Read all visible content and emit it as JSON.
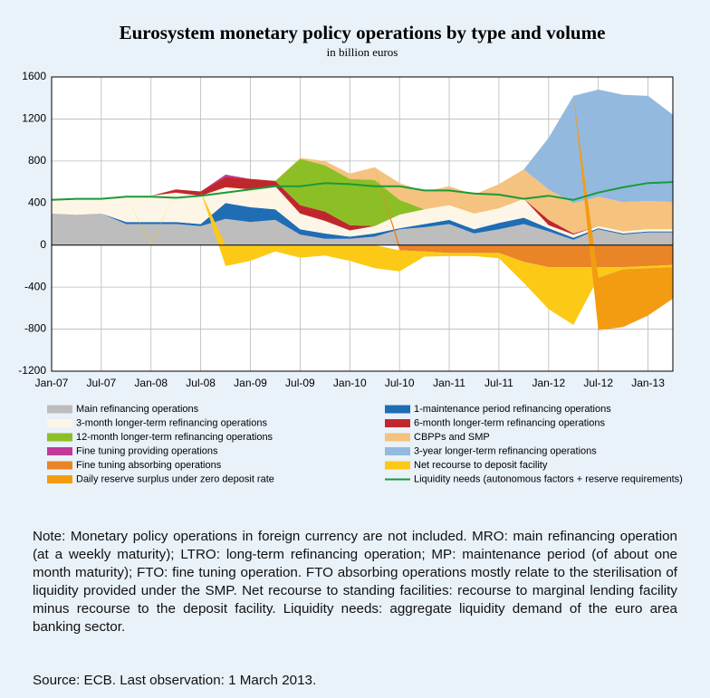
{
  "chart_data": {
    "type": "area",
    "title": "Eurosystem monetary policy operations by type and volume",
    "subtitle": "in billion euros",
    "categories": [
      "Jan-07",
      null,
      "Jul-07",
      null,
      "Jan-08",
      null,
      "Jul-08",
      null,
      "Jan-09",
      null,
      "Jul-09",
      null,
      "Jan-10",
      null,
      "Jul-10",
      null,
      "Jan-11",
      null,
      "Jul-11",
      null,
      "Jan-12",
      null,
      "Jul-12",
      null,
      "Jan-13",
      null
    ],
    "ylim": [
      -1200,
      1600
    ],
    "yticks": [
      -1200,
      -800,
      -400,
      0,
      400,
      800,
      1200,
      1600
    ],
    "grid": true,
    "series": [
      {
        "name": "Main refinancing operations",
        "type": "area",
        "color": "#bdbdbd",
        "values": [
          300,
          290,
          300,
          200,
          200,
          200,
          180,
          250,
          220,
          240,
          100,
          60,
          60,
          80,
          150,
          170,
          200,
          110,
          150,
          200,
          130,
          50,
          150,
          100,
          120,
          120
        ]
      },
      {
        "name": "1-maintenance period refinancing operations",
        "type": "area",
        "color": "#1f6db5",
        "values": [
          0,
          0,
          0,
          20,
          20,
          20,
          20,
          150,
          140,
          100,
          50,
          50,
          20,
          30,
          10,
          30,
          40,
          40,
          60,
          60,
          30,
          20,
          10,
          10,
          10,
          10
        ]
      },
      {
        "name": "3-month longer-term refinancing operations",
        "type": "area",
        "color": "#fdf6e6",
        "values": [
          150,
          150,
          150,
          250,
          250,
          280,
          270,
          150,
          170,
          220,
          150,
          120,
          60,
          70,
          130,
          140,
          140,
          150,
          140,
          180,
          30,
          30,
          20,
          20,
          20,
          20
        ]
      },
      {
        "name": "6-month longer-term refinancing operations",
        "type": "area",
        "color": "#c0272d",
        "values": [
          0,
          0,
          0,
          0,
          0,
          30,
          40,
          100,
          100,
          50,
          80,
          90,
          50,
          0,
          0,
          0,
          0,
          0,
          0,
          0,
          50,
          10,
          0,
          0,
          0,
          0
        ]
      },
      {
        "name": "12-month longer-term refinancing operations",
        "type": "area",
        "color": "#8cbf26",
        "values": [
          0,
          0,
          0,
          0,
          0,
          0,
          0,
          0,
          0,
          0,
          440,
          440,
          440,
          440,
          140,
          0,
          0,
          0,
          0,
          0,
          0,
          0,
          0,
          0,
          0,
          0
        ]
      },
      {
        "name": "CBPPs and SMP",
        "type": "area",
        "color": "#f5c27f",
        "values": [
          0,
          0,
          0,
          0,
          0,
          0,
          0,
          0,
          0,
          0,
          10,
          40,
          50,
          120,
          160,
          170,
          180,
          180,
          230,
          280,
          290,
          290,
          280,
          280,
          270,
          260
        ]
      },
      {
        "name": "Fine tuning providing operations",
        "type": "area",
        "color": "#c1399a",
        "values": [
          0,
          0,
          0,
          0,
          0,
          0,
          0,
          20,
          0,
          0,
          0,
          0,
          0,
          0,
          0,
          0,
          0,
          0,
          0,
          0,
          0,
          0,
          0,
          0,
          0,
          0
        ]
      },
      {
        "name": "3-year longer-term refinancing operations",
        "type": "area",
        "color": "#93b9df",
        "values": [
          0,
          0,
          0,
          0,
          0,
          0,
          0,
          0,
          0,
          0,
          0,
          0,
          0,
          0,
          0,
          0,
          0,
          0,
          0,
          0,
          490,
          1020,
          1020,
          1020,
          1000,
          830
        ]
      },
      {
        "name": "Fine tuning absorbing operations",
        "type": "area",
        "color": "#e98427",
        "values": [
          0,
          0,
          0,
          0,
          0,
          0,
          0,
          0,
          0,
          0,
          0,
          0,
          0,
          0,
          -50,
          -60,
          -75,
          -75,
          -75,
          -160,
          -210,
          -210,
          -210,
          -210,
          -200,
          -190
        ]
      },
      {
        "name": "Net recourse to deposit facility",
        "type": "area",
        "color": "#fcc917",
        "values": [
          0,
          0,
          0,
          0,
          -10,
          0,
          0,
          -200,
          -150,
          -60,
          -120,
          -100,
          -150,
          -220,
          -200,
          -50,
          -30,
          -30,
          -50,
          -200,
          -400,
          -550,
          -100,
          -20,
          -20,
          -20
        ]
      },
      {
        "name": "Daily reserve surplus under zero deposit rate",
        "type": "area",
        "color": "#f39c12",
        "values": [
          0,
          0,
          0,
          0,
          0,
          0,
          0,
          0,
          0,
          0,
          0,
          0,
          0,
          0,
          0,
          0,
          0,
          0,
          0,
          0,
          0,
          0,
          -500,
          -550,
          -450,
          -300
        ]
      },
      {
        "name": "Liquidity needs (autonomous factors + reserve requirements)",
        "type": "line",
        "color": "#1a9a3a",
        "values": [
          430,
          440,
          440,
          460,
          460,
          450,
          470,
          500,
          530,
          560,
          560,
          590,
          580,
          560,
          560,
          520,
          520,
          490,
          480,
          440,
          470,
          430,
          500,
          550,
          590,
          600
        ]
      }
    ]
  },
  "note": "Note: Monetary policy operations in foreign currency are not included. MRO: main refinancing operation (at a weekly maturity); LTRO: long-term refinancing operation; MP: maintenance period (of about one month maturity); FTO: fine tuning operation. FTO absorbing operations mostly relate to the sterilisation of liquidity provided under the SMP. Net recourse to standing facilities: recourse to marginal lending facility minus recourse to the deposit facility. Liquidity needs: aggregate liquidity demand of the euro area banking sector.",
  "source": "Source: ECB. Last observation: 1 March 2013."
}
